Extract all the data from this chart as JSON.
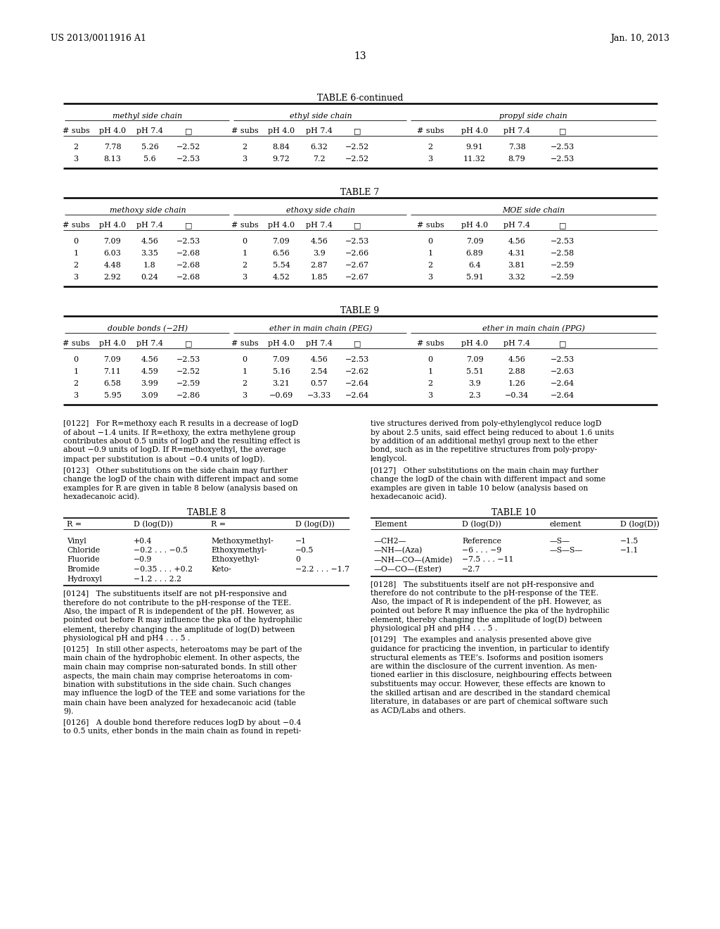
{
  "header_left": "US 2013/0011916 A1",
  "header_right": "Jan. 10, 2013",
  "page_number": "13",
  "background_color": "#ffffff",
  "table6_title": "TABLE 6-continued",
  "table6_headers_top": [
    "methyl side chain",
    "ethyl side chain",
    "propyl side chain"
  ],
  "table6_col_headers": [
    "# subs",
    "pH 4.0",
    "pH 7.4",
    "□",
    "# subs",
    "pH 4.0",
    "pH 7.4",
    "□",
    "# subs",
    "pH 4.0",
    "pH 7.4",
    "□"
  ],
  "table6_data": [
    [
      "2",
      "7.78",
      "5.26",
      "−2.52",
      "2",
      "8.84",
      "6.32",
      "−2.52",
      "2",
      "9.91",
      "7.38",
      "−2.53"
    ],
    [
      "3",
      "8.13",
      "5.6",
      "−2.53",
      "3",
      "9.72",
      "7.2",
      "−2.52",
      "3",
      "11.32",
      "8.79",
      "−2.53"
    ]
  ],
  "table7_title": "TABLE 7",
  "table7_headers_top": [
    "methoxy side chain",
    "ethoxy side chain",
    "MOE side chain"
  ],
  "table7_col_headers": [
    "# subs",
    "pH 4.0",
    "pH 7.4",
    "□",
    "# subs",
    "pH 4.0",
    "pH 7.4",
    "□",
    "# subs",
    "pH 4.0",
    "pH 7.4",
    "□"
  ],
  "table7_data": [
    [
      "0",
      "7.09",
      "4.56",
      "−2.53",
      "0",
      "7.09",
      "4.56",
      "−2.53",
      "0",
      "7.09",
      "4.56",
      "−2.53"
    ],
    [
      "1",
      "6.03",
      "3.35",
      "−2.68",
      "1",
      "6.56",
      "3.9",
      "−2.66",
      "1",
      "6.89",
      "4.31",
      "−2.58"
    ],
    [
      "2",
      "4.48",
      "1.8",
      "−2.68",
      "2",
      "5.54",
      "2.87",
      "−2.67",
      "2",
      "6.4",
      "3.81",
      "−2.59"
    ],
    [
      "3",
      "2.92",
      "0.24",
      "−2.68",
      "3",
      "4.52",
      "1.85",
      "−2.67",
      "3",
      "5.91",
      "3.32",
      "−2.59"
    ]
  ],
  "table9_title": "TABLE 9",
  "table9_headers_top": [
    "double bonds (−2H)",
    "ether in main chain (PEG)",
    "ether in main chain (PPG)"
  ],
  "table9_col_headers": [
    "# subs",
    "pH 4.0",
    "pH 7.4",
    "□",
    "# subs",
    "pH 4.0",
    "pH 7.4",
    "□",
    "# subs",
    "pH 4.0",
    "pH 7.4",
    "□"
  ],
  "table9_data": [
    [
      "0",
      "7.09",
      "4.56",
      "−2.53",
      "0",
      "7.09",
      "4.56",
      "−2.53",
      "0",
      "7.09",
      "4.56",
      "−2.53"
    ],
    [
      "1",
      "7.11",
      "4.59",
      "−2.52",
      "1",
      "5.16",
      "2.54",
      "−2.62",
      "1",
      "5.51",
      "2.88",
      "−2.63"
    ],
    [
      "2",
      "6.58",
      "3.99",
      "−2.59",
      "2",
      "3.21",
      "0.57",
      "−2.64",
      "2",
      "3.9",
      "1.26",
      "−2.64"
    ],
    [
      "3",
      "5.95",
      "3.09",
      "−2.86",
      "3",
      "−0.69",
      "−3.33",
      "−2.64",
      "3",
      "2.3",
      "−0.34",
      "−2.64"
    ]
  ],
  "table8_title": "TABLE 8",
  "table8_col1_header": "R =",
  "table8_col2_header": "D (log(D))",
  "table8_col3_header": "R =",
  "table8_col4_header": "D (log(D))",
  "table8_data": [
    [
      "Vinyl",
      "+0.4",
      "Methoxymethyl-",
      "−1"
    ],
    [
      "Chloride",
      "−0.2 . . . −0.5",
      "Ethoxymethyl-",
      "−0.5"
    ],
    [
      "Fluoride",
      "−0.9",
      "Ethoxyethyl-",
      "0"
    ],
    [
      "Bromide",
      "−0.35 . . . +0.2",
      "Keto-",
      "−2.2 . . . −1.7"
    ],
    [
      "Hydroxyl",
      "−1.2 . . . 2.2",
      "",
      ""
    ]
  ],
  "table10_title": "TABLE 10",
  "table10_col_headers": [
    "Element",
    "D (log(D))",
    "element",
    "D (log(D))"
  ],
  "table10_data": [
    [
      "—CH2—",
      "Reference",
      "—S—",
      "−1.5"
    ],
    [
      "—NH—(Aza)",
      "−6 . . . −9",
      "—S—S—",
      "−1.1"
    ],
    [
      "—NH—CO—(Amide)",
      "−7.5 . . . −11",
      "",
      ""
    ],
    [
      "—O—CO—(Ester)",
      "−2.7",
      "",
      ""
    ]
  ],
  "para_122_left": "[0122]   For R=methoxy each R results in a decrease of logD\nof about −1.4 units. If R=ethoxy, the extra methylene group\ncontributes about 0.5 units of logD and the resulting effect is\nabout −0.9 units of logD. If R=methoxyethyl, the average\nimpact per substitution is about −0.4 units of logD).",
  "para_123_left": "[0123]   Other substitutions on the side chain may further\nchange the logD of the chain with different impact and some\nexamples for R are given in table 8 below (analysis based on\nhexadecanoic acid).",
  "para_124_left": "[0124]   The substituents itself are not pH-responsive and\ntherefore do not contribute to the pH-response of the TEE.\nAlso, the impact of R is independent of the pH. However, as\npointed out before R may influence the pka of the hydrophilic\nelement, thereby changing the amplitude of log(D) between\nphysiological pH and pH4 . . . 5 .",
  "para_125_left": "[0125]   In still other aspects, heteroatoms may be part of the\nmain chain of the hydrophobic element. In other aspects, the\nmain chain may comprise non-saturated bonds. In still other\naspects, the main chain may comprise heteroatoms in com-\nbination with substitutions in the side chain. Such changes\nmay influence the logD of the TEE and some variations for the\nmain chain have been analyzed for hexadecanoic acid (table\n9).",
  "para_126_left": "[0126]   A double bond therefore reduces logD by about −0.4\nto 0.5 units, ether bonds in the main chain as found in repeti-",
  "para_127_right": "tive structures derived from poly-ethylenglycol reduce logD\nby about 2.5 units, said effect being reduced to about 1.6 units\nby addition of an additional methyl group next to the ether\nbond, such as in the repetitive structures from poly-propy-\nlenglycol.",
  "para_127b_right": "[0127]   Other substitutions on the main chain may further\nchange the logD of the chain with different impact and some\nexamples are given in table 10 below (analysis based on\nhexadecanoic acid).",
  "para_128_right": "[0128]   The substituents itself are not pH-responsive and\ntherefore do not contribute to the pH-response of the TEE.\nAlso, the impact of R is independent of the pH. However, as\npointed out before R may influence the pka of the hydrophilic\nelement, thereby changing the amplitude of log(D) between\nphysiological pH and pH4 . . . 5 .",
  "para_129_right": "[0129]   The examples and analysis presented above give\nguidance for practicing the invention, in particular to identify\nstructural elements as TEE’s. Isoforms and position isomers\nare within the disclosure of the current invention. As men-\ntioned earlier in this disclosure, neighbouring effects between\nsubstituents may occur. However, these effects are known to\nthe skilled artisan and are described in the standard chemical\nliterature, in databases or are part of chemical software such\nas ACD/Labs and others."
}
